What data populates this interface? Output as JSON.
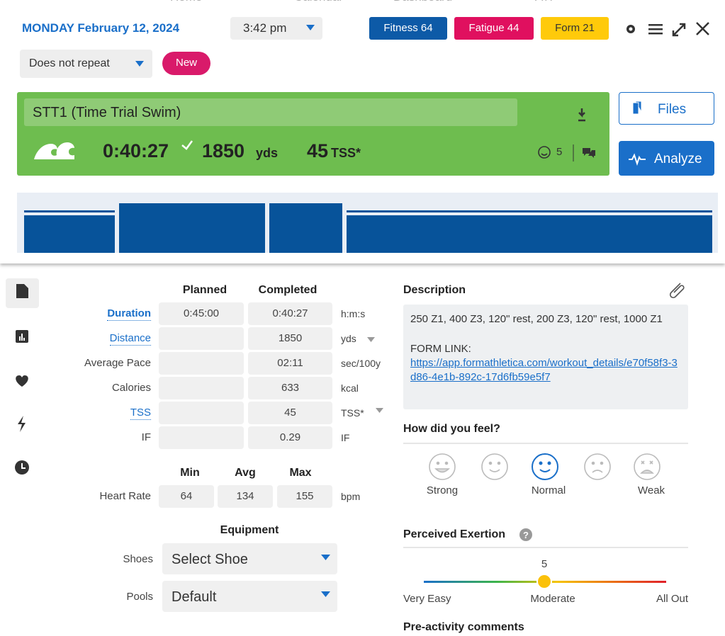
{
  "background_nav": [
    "Home",
    "Calendar",
    "Dashboard",
    "ATP"
  ],
  "header": {
    "date": "MONDAY February 12, 2024",
    "time": "3:42 pm",
    "badges": [
      "Fitness 64",
      "Fatigue 44",
      "Form 21"
    ],
    "repeat": "Does not repeat",
    "new_badge": "New"
  },
  "workout": {
    "title": "STT1 (Time Trial Swim)",
    "duration": "0:40:27",
    "distance": "1850",
    "distance_unit": "yds",
    "tss": "45",
    "tss_unit": "TSS*",
    "comments": "5"
  },
  "buttons": {
    "files": "Files",
    "analyze": "Analyze"
  },
  "metrics": {
    "headers": [
      "Planned",
      "Completed"
    ],
    "rows": [
      {
        "label": "Duration",
        "planned": "0:45:00",
        "completed": "0:40:27",
        "unit": "h:m:s"
      },
      {
        "label": "Distance",
        "completed": "1850",
        "unit": "yds"
      },
      {
        "label": "Average Pace",
        "completed": "02:11",
        "unit": "sec/100y"
      },
      {
        "label": "Calories",
        "completed": "633",
        "unit": "kcal"
      },
      {
        "label": "TSS",
        "completed": "45",
        "unit": "TSS*"
      },
      {
        "label": "IF",
        "completed": "0.29",
        "unit": "IF"
      }
    ]
  },
  "heart_rate": {
    "headers": [
      "Min",
      "Avg",
      "Max"
    ],
    "label": "Heart Rate",
    "values": [
      "64",
      "134",
      "155"
    ],
    "unit": "bpm"
  },
  "equipment": {
    "title": "Equipment",
    "fields": [
      {
        "label": "Shoes",
        "value": "Select Shoe"
      },
      {
        "label": "Pools",
        "value": "Default"
      }
    ]
  },
  "description": {
    "title": "Description",
    "text": "250 Z1, 400 Z3, 120\" rest, 200 Z3, 120\" rest, 1000 Z1",
    "form_link_label": "FORM LINK:",
    "link": "https://app.formathletica.com/workout_details/e70f58f3-3d86-4e1b-892c-17d6fb59e5f7"
  },
  "feel": {
    "title": "How did you feel?",
    "labels": [
      "Strong",
      "Normal",
      "Weak"
    ]
  },
  "exertion": {
    "title": "Perceived Exertion",
    "value": "5",
    "labels": [
      "Very Easy",
      "Moderate",
      "All Out"
    ]
  },
  "pre_comments": "Pre-activity comments"
}
